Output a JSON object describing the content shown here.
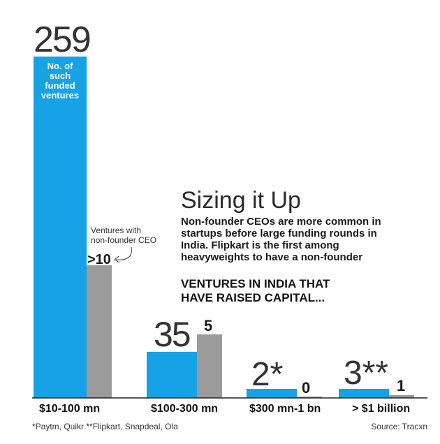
{
  "chart_data": {
    "type": "bar",
    "title": "Sizing it Up",
    "subtitle_lines": [
      "Non-founder CEOs are more common in",
      "startups before large funding rounds in",
      "India. Flipkart is the first among",
      "heavyweights to have a non-founder"
    ],
    "heading_lines": [
      "VENTURES IN INDIA THAT",
      "HAVE RAISED CAPITAL..."
    ],
    "categories": [
      "$10-100 mn",
      "$100-300 mn",
      "$300 mn-1 bn",
      "> $1 billion"
    ],
    "series": [
      {
        "name": "No. of such funded ventures",
        "name_lines": [
          "No. of",
          "such",
          "funded",
          "ventures"
        ],
        "color": "#16a2e4",
        "values": [
          259,
          35,
          2,
          3
        ],
        "value_labels": [
          "259",
          "35",
          "2*",
          "3**"
        ]
      },
      {
        "name": "Ventures with non-founder CEO",
        "name_lines": [
          "Ventures with",
          "non-founder CEO"
        ],
        "color": "#9b9b9b",
        "values": [
          10,
          5,
          0,
          1
        ],
        "value_labels": [
          ">10",
          "5",
          "0",
          "1"
        ]
      }
    ],
    "footnote": "*Paytm, Quikr **Flipkart, Snapdeal, Ola",
    "source": "Source: Tracxn"
  }
}
